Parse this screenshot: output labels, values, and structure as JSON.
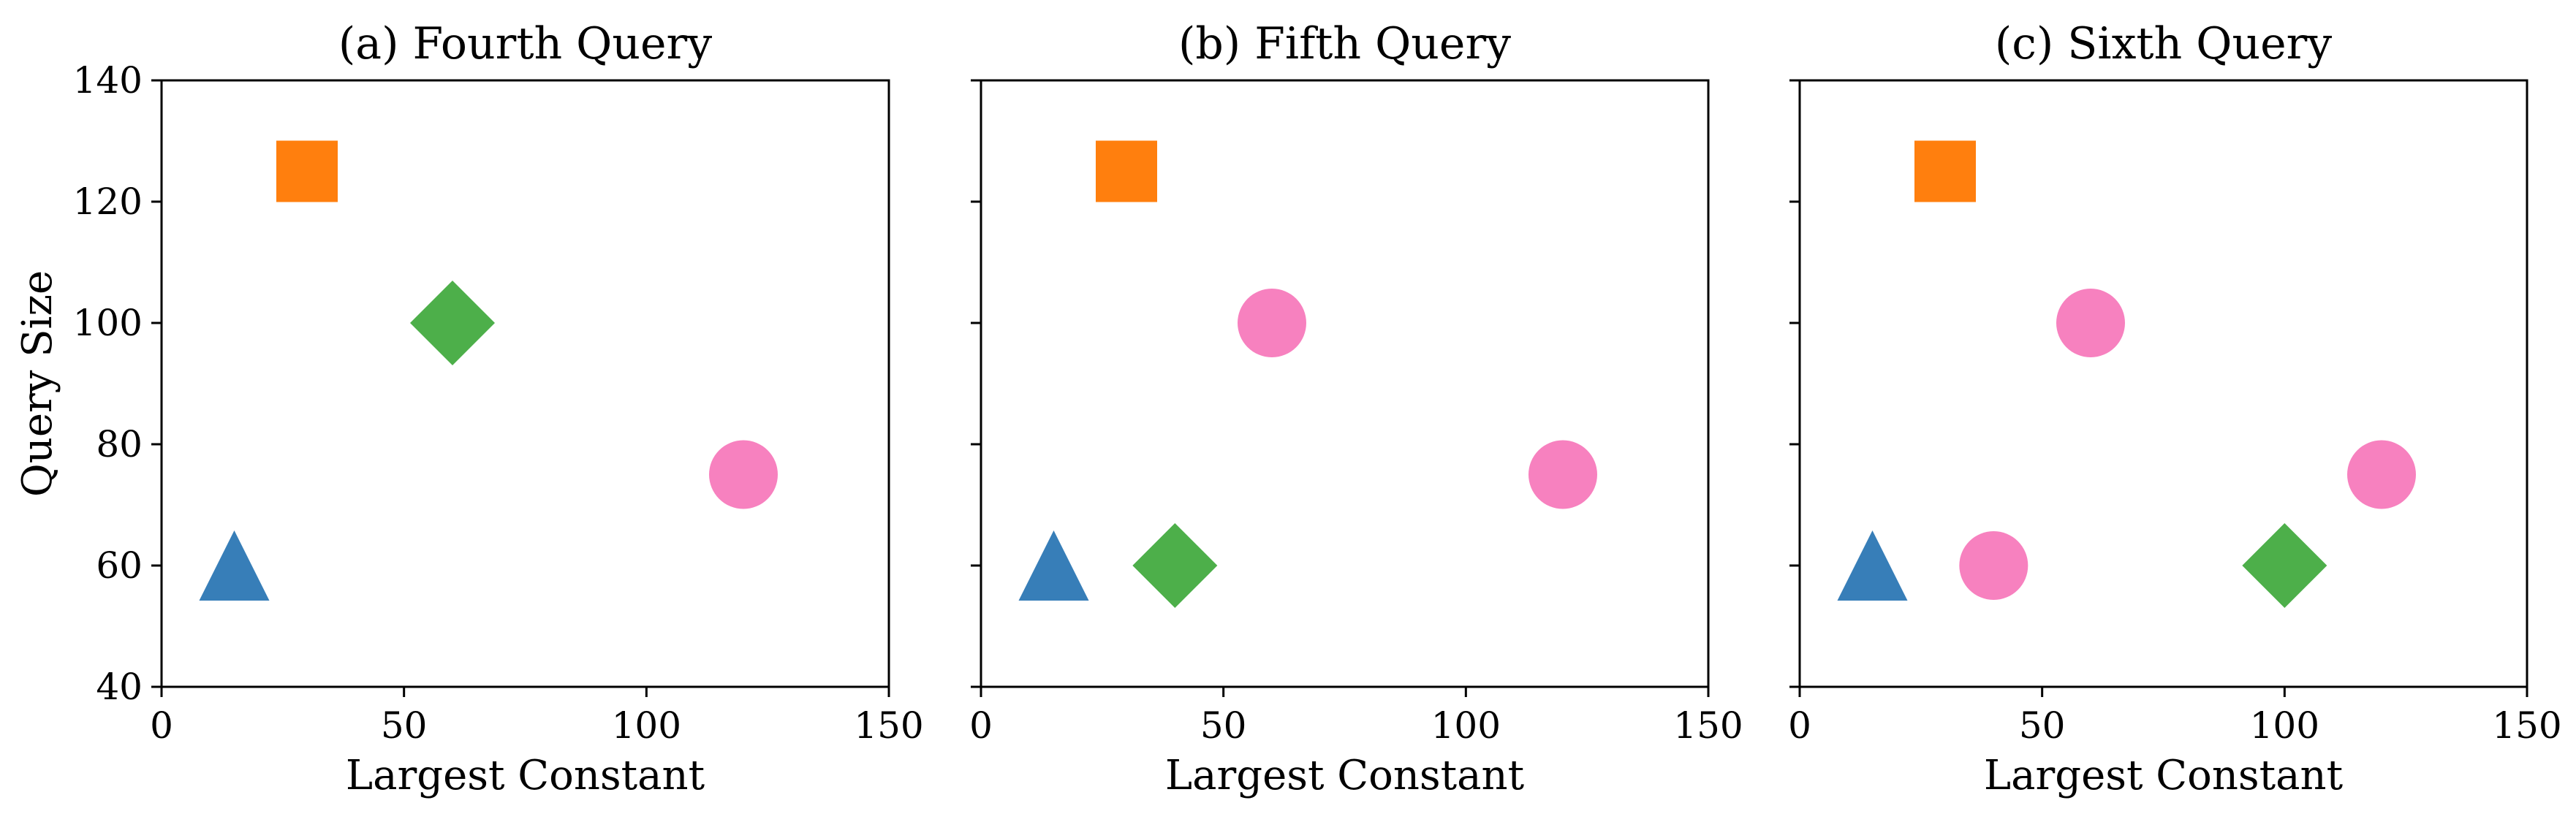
{
  "chart_data": [
    {
      "type": "scatter",
      "title": "(a) Fourth Query",
      "xlabel": "Largest Constant",
      "ylabel": "Query Size",
      "xlim": [
        0,
        150
      ],
      "ylim": [
        40,
        140
      ],
      "xticks": [
        0,
        50,
        100,
        150
      ],
      "yticks": [
        40,
        60,
        80,
        100,
        120,
        140
      ],
      "grid": false,
      "points": [
        {
          "x": 30,
          "y": 125,
          "marker": "square",
          "color": "#ff7f0e"
        },
        {
          "x": 60,
          "y": 100,
          "marker": "diamond",
          "color": "#4daf4a"
        },
        {
          "x": 120,
          "y": 75,
          "marker": "circle",
          "color": "#f781bf"
        },
        {
          "x": 15,
          "y": 60,
          "marker": "triangle",
          "color": "#377eb8"
        }
      ]
    },
    {
      "type": "scatter",
      "title": "(b) Fifth Query",
      "xlabel": "Largest Constant",
      "ylabel": "",
      "xlim": [
        0,
        150
      ],
      "ylim": [
        40,
        140
      ],
      "xticks": [
        0,
        50,
        100,
        150
      ],
      "yticks": [
        40,
        60,
        80,
        100,
        120,
        140
      ],
      "grid": false,
      "points": [
        {
          "x": 30,
          "y": 125,
          "marker": "square",
          "color": "#ff7f0e"
        },
        {
          "x": 60,
          "y": 100,
          "marker": "circle",
          "color": "#f781bf"
        },
        {
          "x": 120,
          "y": 75,
          "marker": "circle",
          "color": "#f781bf"
        },
        {
          "x": 15,
          "y": 60,
          "marker": "triangle",
          "color": "#377eb8"
        },
        {
          "x": 40,
          "y": 60,
          "marker": "diamond",
          "color": "#4daf4a"
        }
      ]
    },
    {
      "type": "scatter",
      "title": "(c) Sixth Query",
      "xlabel": "Largest Constant",
      "ylabel": "",
      "xlim": [
        0,
        150
      ],
      "ylim": [
        40,
        140
      ],
      "xticks": [
        0,
        50,
        100,
        150
      ],
      "yticks": [
        40,
        60,
        80,
        100,
        120,
        140
      ],
      "grid": false,
      "points": [
        {
          "x": 30,
          "y": 125,
          "marker": "square",
          "color": "#ff7f0e"
        },
        {
          "x": 60,
          "y": 100,
          "marker": "circle",
          "color": "#f781bf"
        },
        {
          "x": 120,
          "y": 75,
          "marker": "circle",
          "color": "#f781bf"
        },
        {
          "x": 15,
          "y": 60,
          "marker": "triangle",
          "color": "#377eb8"
        },
        {
          "x": 40,
          "y": 60,
          "marker": "circle",
          "color": "#f781bf"
        },
        {
          "x": 100,
          "y": 60,
          "marker": "diamond",
          "color": "#4daf4a"
        }
      ]
    }
  ]
}
